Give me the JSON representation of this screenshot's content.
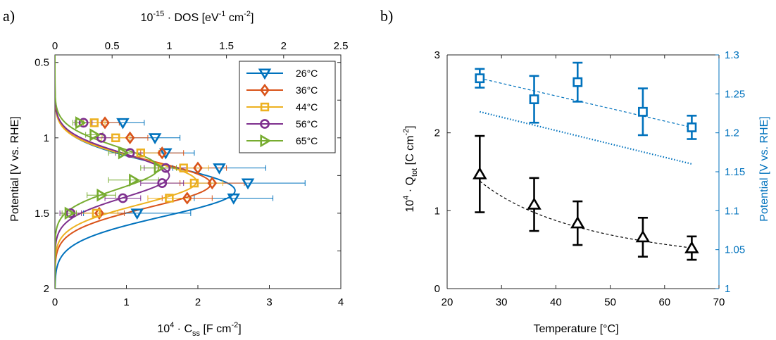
{
  "colors": {
    "c26": "#0072BD",
    "c36": "#D95319",
    "c44": "#EDB120",
    "c56": "#7E2F8E",
    "c65": "#77AC30",
    "black": "#000000",
    "blue": "#0072BD"
  },
  "chart_data": [
    {
      "panel": "a)",
      "type": "scatter",
      "xlabel": "10^4 · C_ss [F cm^-2]",
      "xlabel_parts": {
        "pre": "10",
        "exp": "4",
        "mid": " · C",
        "sub": "ss",
        "unit": "  [F cm",
        "unit_exp": "-2",
        "close": "]"
      },
      "x2label": "10^-15 · DOS [eV^-1 cm^-2]",
      "x2label_parts": {
        "pre": "10",
        "exp": "-15",
        "mid": " · DOS  [eV",
        "exp2": "-1",
        "mid2": " cm",
        "exp3": "-2",
        "close": "]"
      },
      "ylabel": "Potential [V vs. RHE]",
      "xlim": [
        0,
        4
      ],
      "x2lim": [
        0,
        2.5
      ],
      "ylim": [
        2,
        0.45
      ],
      "y_reversed": true,
      "xticks": [
        "0",
        "1",
        "2",
        "3",
        "4"
      ],
      "x2ticks": [
        "0",
        "0.5",
        "1",
        "1.5",
        "2",
        "2.5"
      ],
      "yticks": [
        "0.5",
        "1",
        "1.5",
        "2"
      ],
      "legend_position": "top-right",
      "series": [
        {
          "name": "26°C",
          "color_key": "c26",
          "marker": "triangle-down",
          "points": [
            [
              0.95,
              0.9
            ],
            [
              1.4,
              1.0
            ],
            [
              1.55,
              1.1
            ],
            [
              2.3,
              1.2
            ],
            [
              2.7,
              1.3
            ],
            [
              2.5,
              1.4
            ],
            [
              1.15,
              1.5
            ]
          ],
          "xerr": [
            0.3,
            0.35,
            0.4,
            0.65,
            0.8,
            0.55,
            0.75
          ],
          "fit": {
            "mu": 1.35,
            "sigma": 0.17,
            "amp": 2.52
          }
        },
        {
          "name": "36°C",
          "color_key": "c36",
          "marker": "diamond",
          "points": [
            [
              0.7,
              0.9
            ],
            [
              1.05,
              1.0
            ],
            [
              1.5,
              1.1
            ],
            [
              2.0,
              1.2
            ],
            [
              2.2,
              1.3
            ],
            [
              1.85,
              1.4
            ],
            [
              0.62,
              1.5
            ]
          ],
          "xerr": [
            0.2,
            0.25,
            0.3,
            0.4,
            0.45,
            0.35,
            0.35
          ],
          "fit": {
            "mu": 1.305,
            "sigma": 0.155,
            "amp": 2.18
          }
        },
        {
          "name": "44°C",
          "color_key": "c44",
          "marker": "square",
          "points": [
            [
              0.55,
              0.9
            ],
            [
              0.85,
              1.0
            ],
            [
              1.2,
              1.1
            ],
            [
              1.8,
              1.2
            ],
            [
              1.95,
              1.3
            ],
            [
              1.6,
              1.4
            ],
            [
              0.58,
              1.5
            ]
          ],
          "xerr": [
            0.15,
            0.2,
            0.25,
            0.35,
            0.4,
            0.3,
            0.3
          ],
          "fit": {
            "mu": 1.29,
            "sigma": 0.15,
            "amp": 1.98
          }
        },
        {
          "name": "56°C",
          "color_key": "c56",
          "marker": "circle",
          "points": [
            [
              0.4,
              0.9
            ],
            [
              0.65,
              1.0
            ],
            [
              1.05,
              1.1
            ],
            [
              1.55,
              1.2
            ],
            [
              1.5,
              1.3
            ],
            [
              0.95,
              1.4
            ],
            [
              0.22,
              1.5
            ]
          ],
          "xerr": [
            0.12,
            0.15,
            0.2,
            0.3,
            0.3,
            0.25,
            0.15
          ],
          "fit": {
            "mu": 1.25,
            "sigma": 0.145,
            "amp": 1.6
          }
        },
        {
          "name": "65°C",
          "color_key": "c65",
          "marker": "triangle-right",
          "points": [
            [
              0.35,
              0.9
            ],
            [
              0.55,
              0.98
            ],
            [
              0.95,
              1.1
            ],
            [
              1.45,
              1.2
            ],
            [
              1.1,
              1.28
            ],
            [
              0.65,
              1.38
            ],
            [
              0.2,
              1.5
            ]
          ],
          "xerr": [
            0.1,
            0.12,
            0.2,
            0.25,
            0.35,
            0.2,
            0.1
          ],
          "fit": {
            "mu": 1.2,
            "sigma": 0.14,
            "amp": 1.45
          }
        }
      ]
    },
    {
      "panel": "b)",
      "type": "scatter",
      "xlabel": "Temperature [°C]",
      "xlabel_text": "Temperature  [°C]",
      "ylabel": "10^4 · Q_tot [C cm^-2]",
      "ylabel_parts": {
        "pre": "10",
        "exp": "4",
        "mid": " · Q",
        "sub": "tot",
        "unit": "  [C cm",
        "unit_exp": "-2",
        "close": "]"
      },
      "y2label": "Potential [V vs. RHE]",
      "xlim": [
        20,
        70
      ],
      "ylim": [
        0,
        3
      ],
      "y2lim": [
        1,
        1.3
      ],
      "xticks": [
        "20",
        "30",
        "40",
        "50",
        "60",
        "70"
      ],
      "yticks": [
        "0",
        "1",
        "2",
        "3"
      ],
      "y2ticks": [
        "1",
        "1.05",
        "1.1",
        "1.15",
        "1.2",
        "1.25",
        "1.3"
      ],
      "series": [
        {
          "axis": "left",
          "color_key": "black",
          "marker": "triangle-up",
          "x": [
            26,
            36,
            44,
            56,
            65
          ],
          "y": [
            1.47,
            1.08,
            0.84,
            0.66,
            0.52
          ],
          "yerr": [
            0.49,
            0.34,
            0.28,
            0.25,
            0.15
          ],
          "fit_line": "dashed",
          "fit_y": [
            1.38,
            1.04,
            0.84,
            0.64,
            0.52
          ]
        },
        {
          "axis": "right",
          "color_key": "blue",
          "marker": "square",
          "x": [
            26,
            36,
            44,
            56,
            65
          ],
          "y": [
            1.27,
            1.243,
            1.265,
            1.227,
            1.207
          ],
          "yerr": [
            0.012,
            0.03,
            0.025,
            0.03,
            0.015
          ],
          "fit_line": "dashed",
          "fit_y": [
            1.27,
            1.207
          ]
        },
        {
          "axis": "right",
          "color_key": "blue",
          "marker": "none",
          "x": [
            26,
            65
          ],
          "y": [
            1.227,
            1.16
          ],
          "fit_line": "dotted"
        }
      ]
    }
  ]
}
